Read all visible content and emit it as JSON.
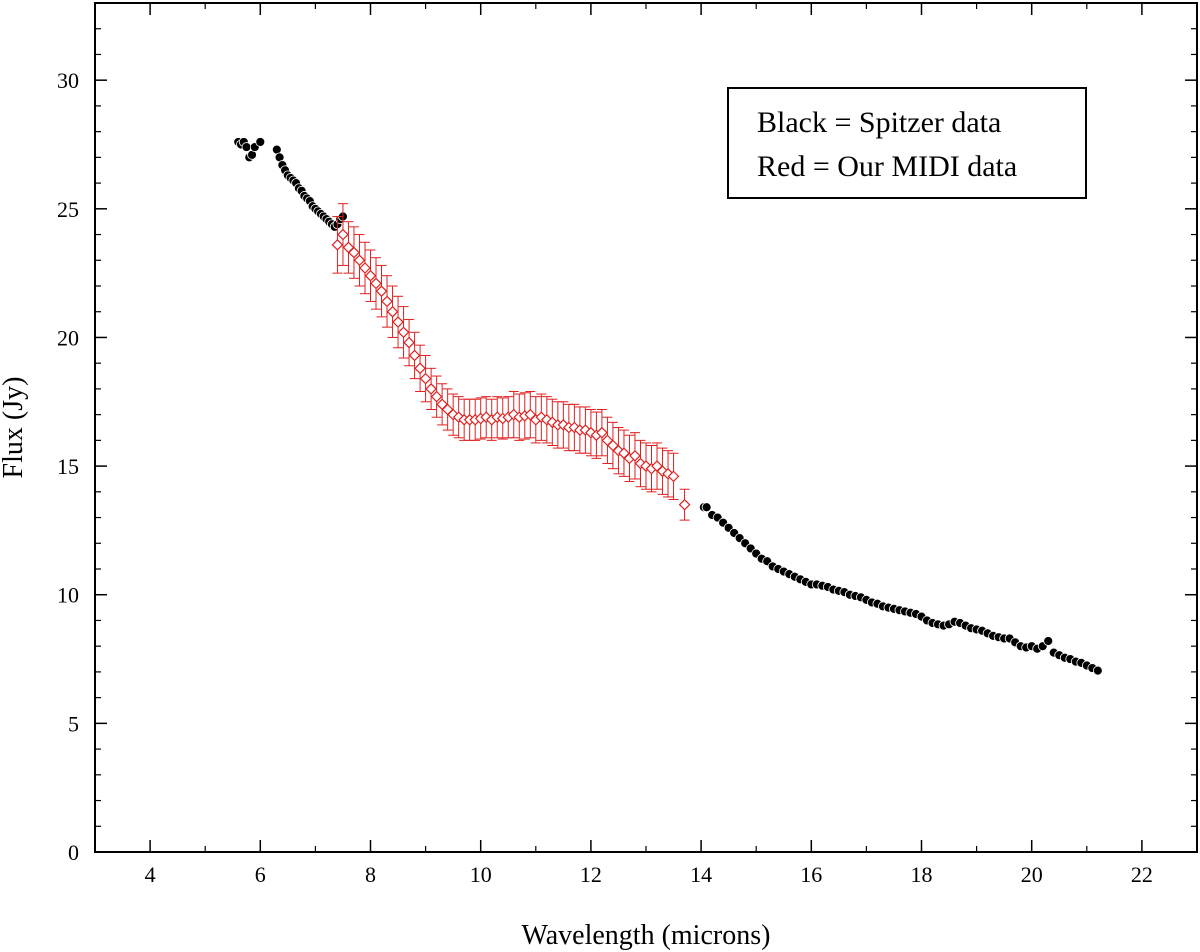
{
  "chart_data": {
    "type": "scatter",
    "title": "",
    "xlabel": "Wavelength (microns)",
    "ylabel": "Flux (Jy)",
    "xlim": [
      3,
      23
    ],
    "ylim": [
      0,
      33
    ],
    "xticks": [
      4,
      6,
      8,
      10,
      12,
      14,
      16,
      18,
      20,
      22
    ],
    "yticks": [
      0,
      5,
      10,
      15,
      20,
      25,
      30
    ],
    "grid": false,
    "legend": {
      "placement": "top-right",
      "entries": [
        "Black = Spitzer data",
        "Red = Our MIDI data"
      ]
    },
    "series": [
      {
        "name": "Spitzer data",
        "color": "#000000",
        "marker": "filled-circle",
        "x": [
          5.6,
          5.65,
          5.7,
          5.75,
          5.8,
          5.85,
          5.9,
          6.0,
          6.3,
          6.35,
          6.4,
          6.45,
          6.5,
          6.55,
          6.6,
          6.65,
          6.7,
          6.75,
          6.8,
          6.85,
          6.9,
          6.95,
          7.0,
          7.05,
          7.1,
          7.15,
          7.2,
          7.25,
          7.3,
          7.35,
          7.4,
          7.45,
          7.5,
          14.05,
          14.1,
          14.2,
          14.3,
          14.4,
          14.5,
          14.6,
          14.7,
          14.8,
          14.9,
          15.0,
          15.1,
          15.2,
          15.3,
          15.4,
          15.5,
          15.6,
          15.7,
          15.8,
          15.9,
          16.0,
          16.1,
          16.2,
          16.3,
          16.4,
          16.5,
          16.6,
          16.7,
          16.8,
          16.9,
          17.0,
          17.1,
          17.2,
          17.3,
          17.4,
          17.5,
          17.6,
          17.7,
          17.8,
          17.9,
          18.0,
          18.1,
          18.2,
          18.3,
          18.4,
          18.5,
          18.6,
          18.7,
          18.8,
          18.9,
          19.0,
          19.1,
          19.2,
          19.3,
          19.4,
          19.5,
          19.6,
          19.7,
          19.8,
          19.9,
          20.0,
          20.1,
          20.2,
          20.3,
          20.4,
          20.5,
          20.6,
          20.7,
          20.8,
          20.9,
          21.0,
          21.1,
          21.2
        ],
        "y": [
          27.6,
          27.5,
          27.6,
          27.4,
          27.0,
          27.1,
          27.4,
          27.6,
          27.3,
          27.0,
          26.7,
          26.5,
          26.3,
          26.2,
          26.1,
          26.0,
          25.8,
          25.7,
          25.5,
          25.4,
          25.3,
          25.1,
          25.0,
          24.9,
          24.8,
          24.7,
          24.6,
          24.5,
          24.4,
          24.3,
          24.4,
          24.6,
          24.7,
          13.4,
          13.4,
          13.1,
          13.0,
          12.8,
          12.6,
          12.4,
          12.2,
          12.0,
          11.8,
          11.6,
          11.4,
          11.3,
          11.1,
          11.0,
          10.9,
          10.8,
          10.7,
          10.6,
          10.5,
          10.4,
          10.4,
          10.35,
          10.3,
          10.2,
          10.15,
          10.1,
          10.0,
          9.95,
          9.9,
          9.8,
          9.7,
          9.65,
          9.55,
          9.5,
          9.45,
          9.4,
          9.35,
          9.3,
          9.25,
          9.15,
          9.0,
          8.9,
          8.85,
          8.8,
          8.85,
          8.95,
          8.9,
          8.8,
          8.7,
          8.65,
          8.6,
          8.5,
          8.4,
          8.35,
          8.3,
          8.3,
          8.15,
          8.0,
          7.95,
          8.0,
          7.9,
          8.0,
          8.2,
          7.75,
          7.65,
          7.55,
          7.5,
          7.4,
          7.35,
          7.25,
          7.15,
          7.05
        ]
      },
      {
        "name": "Our MIDI data",
        "color": "#e02020",
        "marker": "open-diamond",
        "x": [
          7.4,
          7.5,
          7.6,
          7.7,
          7.8,
          7.9,
          8.0,
          8.1,
          8.2,
          8.3,
          8.4,
          8.5,
          8.6,
          8.7,
          8.8,
          8.9,
          9.0,
          9.1,
          9.2,
          9.3,
          9.4,
          9.5,
          9.6,
          9.7,
          9.8,
          9.9,
          10.0,
          10.1,
          10.2,
          10.3,
          10.4,
          10.5,
          10.6,
          10.7,
          10.8,
          10.9,
          11.0,
          11.1,
          11.2,
          11.3,
          11.4,
          11.5,
          11.6,
          11.7,
          11.8,
          11.9,
          12.0,
          12.1,
          12.2,
          12.3,
          12.4,
          12.5,
          12.6,
          12.7,
          12.8,
          12.9,
          13.0,
          13.1,
          13.2,
          13.3,
          13.4,
          13.5,
          13.7
        ],
        "y": [
          23.6,
          24.0,
          23.5,
          23.3,
          23.0,
          22.7,
          22.4,
          22.1,
          21.8,
          21.4,
          21.0,
          20.6,
          20.2,
          19.8,
          19.3,
          18.8,
          18.4,
          18.0,
          17.7,
          17.4,
          17.2,
          17.0,
          16.9,
          16.8,
          16.8,
          16.8,
          16.85,
          16.9,
          16.8,
          16.9,
          16.85,
          16.9,
          17.0,
          16.9,
          16.95,
          17.0,
          16.8,
          16.9,
          16.8,
          16.7,
          16.6,
          16.6,
          16.5,
          16.5,
          16.4,
          16.4,
          16.3,
          16.2,
          16.3,
          16.0,
          15.8,
          15.6,
          15.5,
          15.3,
          15.4,
          15.1,
          15.0,
          14.9,
          15.0,
          14.8,
          14.7,
          14.6,
          13.5
        ],
        "errors": [
          1.1,
          1.2,
          1.0,
          1.0,
          1.0,
          1.0,
          1.0,
          1.0,
          1.0,
          1.0,
          1.0,
          1.0,
          1.0,
          0.9,
          0.9,
          0.9,
          0.9,
          0.8,
          0.8,
          0.8,
          0.8,
          0.8,
          0.8,
          0.8,
          0.8,
          0.8,
          0.8,
          0.8,
          0.8,
          0.8,
          0.8,
          0.8,
          0.9,
          0.9,
          0.9,
          0.9,
          0.9,
          0.9,
          0.9,
          0.9,
          0.9,
          0.9,
          0.9,
          0.9,
          0.9,
          0.9,
          0.9,
          0.9,
          0.9,
          0.9,
          0.9,
          0.9,
          0.9,
          0.9,
          0.9,
          0.9,
          0.9,
          0.9,
          0.9,
          0.9,
          0.9,
          0.9,
          0.6
        ]
      }
    ]
  }
}
